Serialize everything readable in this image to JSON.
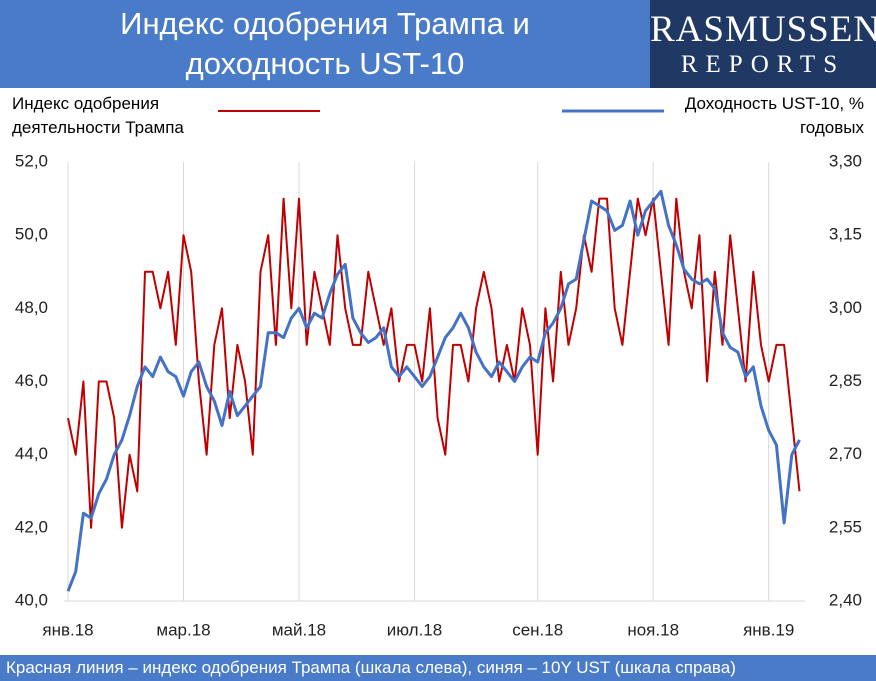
{
  "chart_data": {
    "type": "line",
    "title": "Индекс одобрения Трампа и доходность UST-10",
    "logo": [
      "RASMUSSEN",
      "REPORTS"
    ],
    "footer": "Красная линия – индекс одобрения Трампа (шкала слева), синяя – 10Y UST (шкала справа)",
    "categories": [
      "янв.18",
      null,
      null,
      null,
      null,
      null,
      null,
      null,
      null,
      null,
      null,
      null,
      null,
      null,
      null,
      "мар.18",
      null,
      null,
      null,
      null,
      null,
      null,
      null,
      null,
      null,
      null,
      null,
      null,
      null,
      null,
      "май.18",
      null,
      null,
      null,
      null,
      null,
      null,
      null,
      null,
      null,
      null,
      null,
      null,
      null,
      null,
      "июл.18",
      null,
      null,
      null,
      null,
      null,
      null,
      null,
      null,
      null,
      null,
      null,
      null,
      null,
      null,
      null,
      "сен.18",
      null,
      null,
      null,
      null,
      null,
      null,
      null,
      null,
      null,
      null,
      null,
      null,
      null,
      null,
      "ноя.18",
      null,
      null,
      null,
      null,
      null,
      null,
      null,
      null,
      null,
      null,
      null,
      null,
      null,
      null,
      "янв.19",
      null,
      null,
      null,
      null
    ],
    "series": [
      {
        "name": "Индекс одобрения деятельности Трампа",
        "color": "#c00000",
        "values": [
          45,
          44,
          46,
          42,
          46,
          46,
          45,
          42,
          44,
          43,
          49,
          49,
          48,
          49,
          47,
          50,
          49,
          46,
          44,
          47,
          48,
          45,
          47,
          46,
          44,
          49,
          50,
          47,
          51,
          48,
          51,
          47,
          49,
          48,
          47,
          50,
          48,
          47,
          47,
          49,
          48,
          47,
          48,
          46,
          47,
          47,
          46,
          48,
          45,
          44,
          47,
          47,
          46,
          48,
          49,
          48,
          46,
          47,
          46,
          48,
          47,
          44,
          48,
          46,
          49,
          47,
          48,
          50,
          49,
          51,
          51,
          48,
          47,
          49,
          51,
          50,
          51,
          49,
          47,
          51,
          49,
          48,
          50,
          46,
          49,
          47,
          50,
          48,
          46,
          49,
          47,
          46,
          47,
          47,
          45,
          43
        ]
      },
      {
        "name": "Доходность UST-10, % годовых",
        "color": "#4472c4",
        "axis": "y2",
        "values": [
          2.42,
          2.46,
          2.58,
          2.57,
          2.62,
          2.65,
          2.7,
          2.73,
          2.78,
          2.84,
          2.88,
          2.86,
          2.9,
          2.87,
          2.86,
          2.82,
          2.87,
          2.89,
          2.84,
          2.81,
          2.76,
          2.83,
          2.78,
          2.8,
          2.82,
          2.84,
          2.95,
          2.95,
          2.94,
          2.98,
          3.0,
          2.96,
          2.99,
          2.98,
          3.03,
          3.07,
          3.09,
          2.98,
          2.95,
          2.93,
          2.94,
          2.96,
          2.88,
          2.86,
          2.88,
          2.86,
          2.84,
          2.86,
          2.9,
          2.94,
          2.96,
          2.99,
          2.96,
          2.91,
          2.88,
          2.86,
          2.89,
          2.87,
          2.85,
          2.88,
          2.9,
          2.89,
          2.95,
          2.97,
          3.0,
          3.05,
          3.06,
          3.14,
          3.22,
          3.21,
          3.2,
          3.16,
          3.17,
          3.22,
          3.15,
          3.2,
          3.22,
          3.24,
          3.17,
          3.13,
          3.08,
          3.06,
          3.05,
          3.06,
          3.04,
          2.95,
          2.92,
          2.91,
          2.86,
          2.88,
          2.8,
          2.75,
          2.72,
          2.56,
          2.7,
          2.73
        ]
      }
    ],
    "ylim": [
      40,
      52
    ],
    "yticks": [
      {
        "value": 40,
        "label": "40,0"
      },
      {
        "value": 42,
        "label": "42,0"
      },
      {
        "value": 44,
        "label": "44,0"
      },
      {
        "value": 46,
        "label": "46,0"
      },
      {
        "value": 48,
        "label": "48,0"
      },
      {
        "value": 50,
        "label": "50,0"
      },
      {
        "value": 52,
        "label": "52,0"
      }
    ],
    "y2lim": [
      2.4,
      3.3
    ],
    "y2ticks": [
      {
        "value": 2.4,
        "label": "2,40"
      },
      {
        "value": 2.55,
        "label": "2,55"
      },
      {
        "value": 2.7,
        "label": "2,70"
      },
      {
        "value": 2.85,
        "label": "2,85"
      },
      {
        "value": 3.0,
        "label": "3,00"
      },
      {
        "value": 3.15,
        "label": "3,15"
      },
      {
        "value": 3.3,
        "label": "3,30"
      }
    ],
    "grid": "x"
  }
}
